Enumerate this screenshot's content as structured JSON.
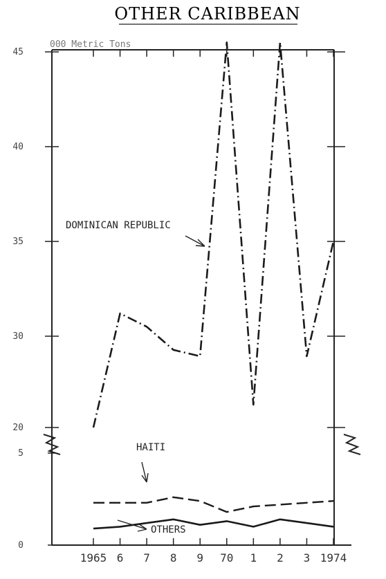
{
  "chart_data": {
    "type": "line",
    "title": "OTHER CARIBBEAN",
    "units_label": "000 Metric Tons",
    "x": [
      "1965",
      "6",
      "7",
      "8",
      "9",
      "70",
      "1",
      "2",
      "3",
      "1974"
    ],
    "y_ticks_upper": [
      "20",
      "30",
      "35",
      "40",
      "45"
    ],
    "y_ticks_lower": [
      "0",
      "5"
    ],
    "y_axis_break": true,
    "grid": false,
    "series": [
      {
        "name": "DOMINICAN REPUBLIC",
        "values": [
          20,
          31.2,
          30.5,
          28.5,
          27.8,
          45.5,
          22.5,
          45.5,
          27.8,
          35
        ]
      },
      {
        "name": "HAITI",
        "values": [
          2.3,
          2.3,
          2.3,
          2.6,
          2.4,
          1.8,
          2.1,
          2.2,
          2.3,
          2.4
        ]
      },
      {
        "name": "OTHERS",
        "values": [
          0.9,
          1.0,
          1.2,
          1.4,
          1.1,
          1.3,
          1.0,
          1.4,
          1.2,
          1.0
        ]
      }
    ],
    "annotations": [
      "DOMINICAN REPUBLIC",
      "HAITI",
      "OTHERS"
    ]
  }
}
